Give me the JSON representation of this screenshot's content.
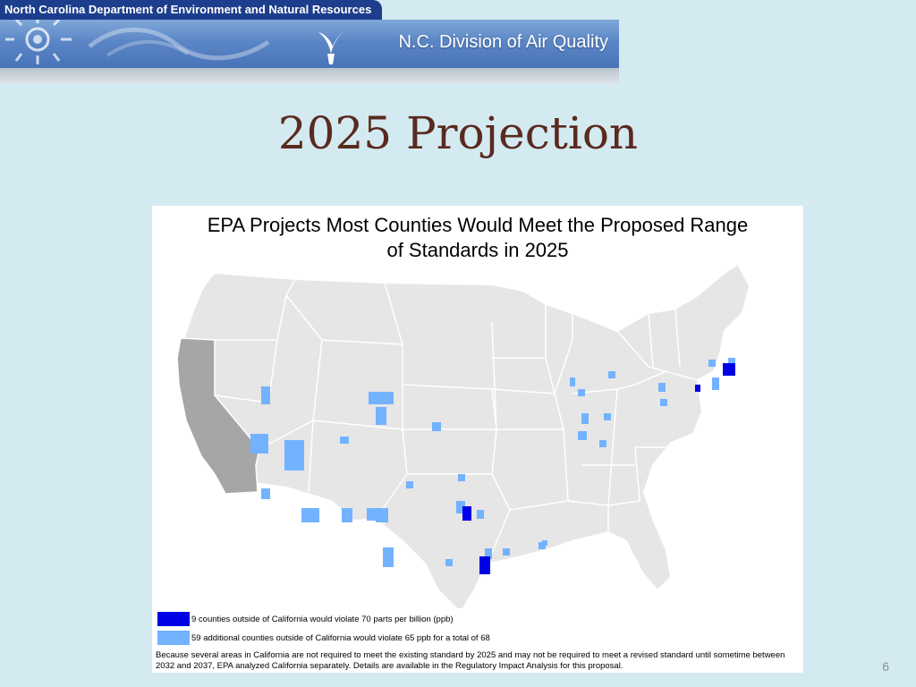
{
  "banner": {
    "department": "North Carolina Department of Environment and Natural Resources",
    "division": "N.C. Division of Air Quality"
  },
  "slide": {
    "title": "2025 Projection",
    "page_number": "6"
  },
  "figure": {
    "title_line1": "EPA Projects Most Counties Would Meet the Proposed Range",
    "title_line2": "of Standards in 2025",
    "legend": [
      {
        "color": "#0000e6",
        "label": "9 counties outside of California would violate 70 parts per billion (ppb)"
      },
      {
        "color": "#73b2ff",
        "label": "59 additional counties outside of California would violate 65 ppb for a total of 68"
      }
    ],
    "note": "Because several areas in California are not required to meet the existing standard by 2025 and may not be required to meet a revised standard until sometime between 2032 and 2037, EPA analyzed California separately. Details are available in the Regulatory Impact Analysis for this proposal."
  },
  "colors": {
    "land": "#e6e6e6",
    "borders": "#ffffff",
    "california": "#a6a6a6",
    "violate_70": "#0000e6",
    "violate_65": "#73b2ff"
  }
}
